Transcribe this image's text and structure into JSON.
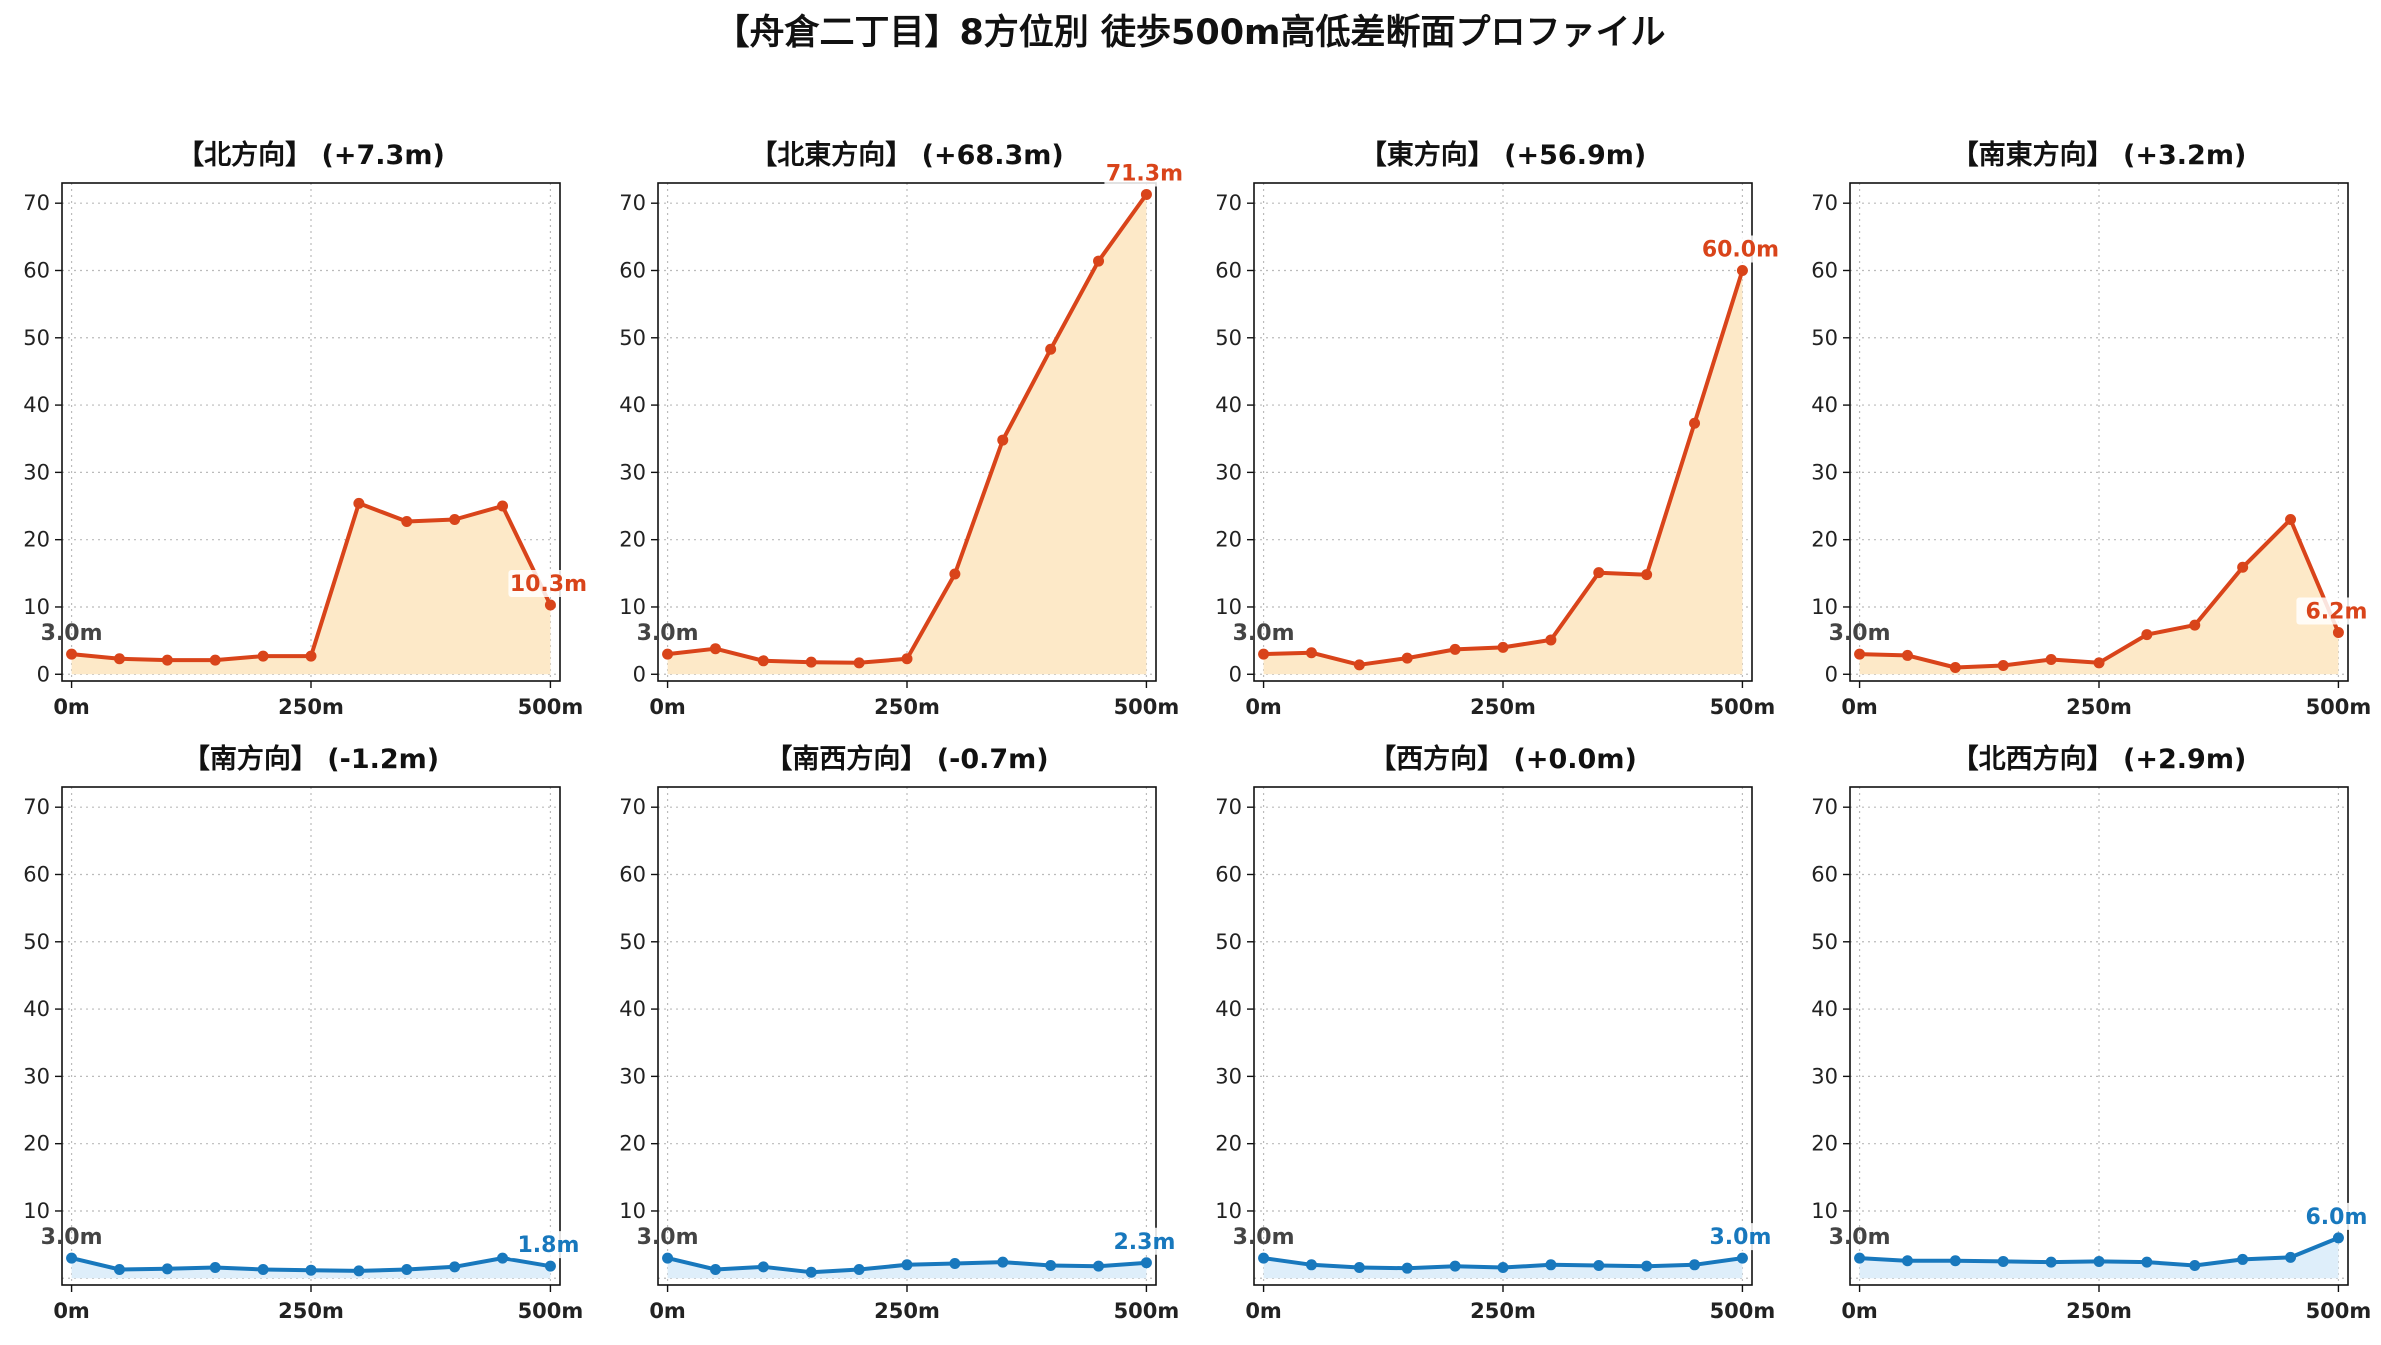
{
  "title": "【舟倉二丁目】8方位別 徒歩500m高低差断面プロファイル",
  "colors": {
    "up_line": "#d9441a",
    "up_fill": "#fde9c8",
    "down_line": "#1878bd",
    "down_fill": "#deeefa",
    "grid": "#bbbbbb",
    "start_label": "#444444"
  },
  "chart_data": [
    {
      "type": "area",
      "title": "【北方向】 (+7.3m)",
      "trend": "up",
      "x": [
        0,
        50,
        100,
        150,
        200,
        250,
        300,
        350,
        400,
        450,
        500
      ],
      "values": [
        3.0,
        2.3,
        2.1,
        2.1,
        2.7,
        2.7,
        25.4,
        22.7,
        23.0,
        25.0,
        10.3
      ],
      "xticks": [
        "0m",
        "250m",
        "500m"
      ],
      "yticks": [
        "0",
        "10",
        "20",
        "30",
        "40",
        "50",
        "60",
        "70"
      ],
      "start_label": "3.0m",
      "end_label": "10.3m",
      "xlim": [
        -10,
        510
      ],
      "ylim": [
        -1,
        73
      ],
      "grid": true
    },
    {
      "type": "area",
      "title": "【北東方向】 (+68.3m)",
      "trend": "up",
      "x": [
        0,
        50,
        100,
        150,
        200,
        250,
        300,
        350,
        400,
        450,
        500
      ],
      "values": [
        3.0,
        3.8,
        2.0,
        1.8,
        1.7,
        2.3,
        14.9,
        34.8,
        48.3,
        61.4,
        71.3
      ],
      "xticks": [
        "0m",
        "250m",
        "500m"
      ],
      "yticks": [
        "0",
        "10",
        "20",
        "30",
        "40",
        "50",
        "60",
        "70"
      ],
      "start_label": "3.0m",
      "end_label": "71.3m",
      "xlim": [
        -10,
        510
      ],
      "ylim": [
        -1,
        73
      ],
      "grid": true
    },
    {
      "type": "area",
      "title": "【東方向】 (+56.9m)",
      "trend": "up",
      "x": [
        0,
        50,
        100,
        150,
        200,
        250,
        300,
        350,
        400,
        450,
        500
      ],
      "values": [
        3.0,
        3.2,
        1.4,
        2.4,
        3.7,
        4.0,
        5.1,
        15.1,
        14.8,
        37.3,
        60.0
      ],
      "xticks": [
        "0m",
        "250m",
        "500m"
      ],
      "yticks": [
        "0",
        "10",
        "20",
        "30",
        "40",
        "50",
        "60",
        "70"
      ],
      "start_label": "3.0m",
      "end_label": "60.0m",
      "xlim": [
        -10,
        510
      ],
      "ylim": [
        -1,
        73
      ],
      "grid": true
    },
    {
      "type": "area",
      "title": "【南東方向】 (+3.2m)",
      "trend": "up",
      "x": [
        0,
        50,
        100,
        150,
        200,
        250,
        300,
        350,
        400,
        450,
        500
      ],
      "values": [
        3.0,
        2.8,
        1.0,
        1.3,
        2.2,
        1.7,
        5.9,
        7.3,
        15.9,
        23.0,
        6.2
      ],
      "xticks": [
        "0m",
        "250m",
        "500m"
      ],
      "yticks": [
        "0",
        "10",
        "20",
        "30",
        "40",
        "50",
        "60",
        "70"
      ],
      "start_label": "3.0m",
      "end_label": "6.2m",
      "xlim": [
        -10,
        510
      ],
      "ylim": [
        -1,
        73
      ],
      "grid": true
    },
    {
      "type": "area",
      "title": "【南方向】 (-1.2m)",
      "trend": "down",
      "x": [
        0,
        50,
        100,
        150,
        200,
        250,
        300,
        350,
        400,
        450,
        500
      ],
      "values": [
        3.0,
        1.3,
        1.4,
        1.6,
        1.3,
        1.2,
        1.1,
        1.3,
        1.7,
        3.0,
        1.8
      ],
      "xticks": [
        "0m",
        "250m",
        "500m"
      ],
      "yticks": [
        "10",
        "20",
        "30",
        "40",
        "50",
        "60",
        "70"
      ],
      "start_label": "3.0m",
      "end_label": "1.8m",
      "xlim": [
        -10,
        510
      ],
      "ylim": [
        -1,
        73
      ],
      "grid": true
    },
    {
      "type": "area",
      "title": "【南西方向】 (-0.7m)",
      "trend": "down",
      "x": [
        0,
        50,
        100,
        150,
        200,
        250,
        300,
        350,
        400,
        450,
        500
      ],
      "values": [
        3.0,
        1.3,
        1.7,
        0.9,
        1.3,
        2.0,
        2.2,
        2.4,
        1.9,
        1.8,
        2.3
      ],
      "xticks": [
        "0m",
        "250m",
        "500m"
      ],
      "yticks": [
        "10",
        "20",
        "30",
        "40",
        "50",
        "60",
        "70"
      ],
      "start_label": "3.0m",
      "end_label": "2.3m",
      "xlim": [
        -10,
        510
      ],
      "ylim": [
        -1,
        73
      ],
      "grid": true
    },
    {
      "type": "area",
      "title": "【西方向】 (+0.0m)",
      "trend": "down",
      "x": [
        0,
        50,
        100,
        150,
        200,
        250,
        300,
        350,
        400,
        450,
        500
      ],
      "values": [
        3.0,
        2.0,
        1.6,
        1.5,
        1.8,
        1.6,
        2.0,
        1.9,
        1.8,
        2.0,
        3.0
      ],
      "xticks": [
        "0m",
        "250m",
        "500m"
      ],
      "yticks": [
        "10",
        "20",
        "30",
        "40",
        "50",
        "60",
        "70"
      ],
      "start_label": "3.0m",
      "end_label": "3.0m",
      "xlim": [
        -10,
        510
      ],
      "ylim": [
        -1,
        73
      ],
      "grid": true
    },
    {
      "type": "area",
      "title": "【北西方向】 (+2.9m)",
      "trend": "down",
      "x": [
        0,
        50,
        100,
        150,
        200,
        250,
        300,
        350,
        400,
        450,
        500
      ],
      "values": [
        3.0,
        2.6,
        2.6,
        2.5,
        2.4,
        2.5,
        2.4,
        1.9,
        2.8,
        3.1,
        6.0
      ],
      "xticks": [
        "0m",
        "250m",
        "500m"
      ],
      "yticks": [
        "10",
        "20",
        "30",
        "40",
        "50",
        "60",
        "70"
      ],
      "start_label": "3.0m",
      "end_label": "6.0m",
      "xlim": [
        -10,
        510
      ],
      "ylim": [
        -1,
        73
      ],
      "grid": true
    }
  ]
}
